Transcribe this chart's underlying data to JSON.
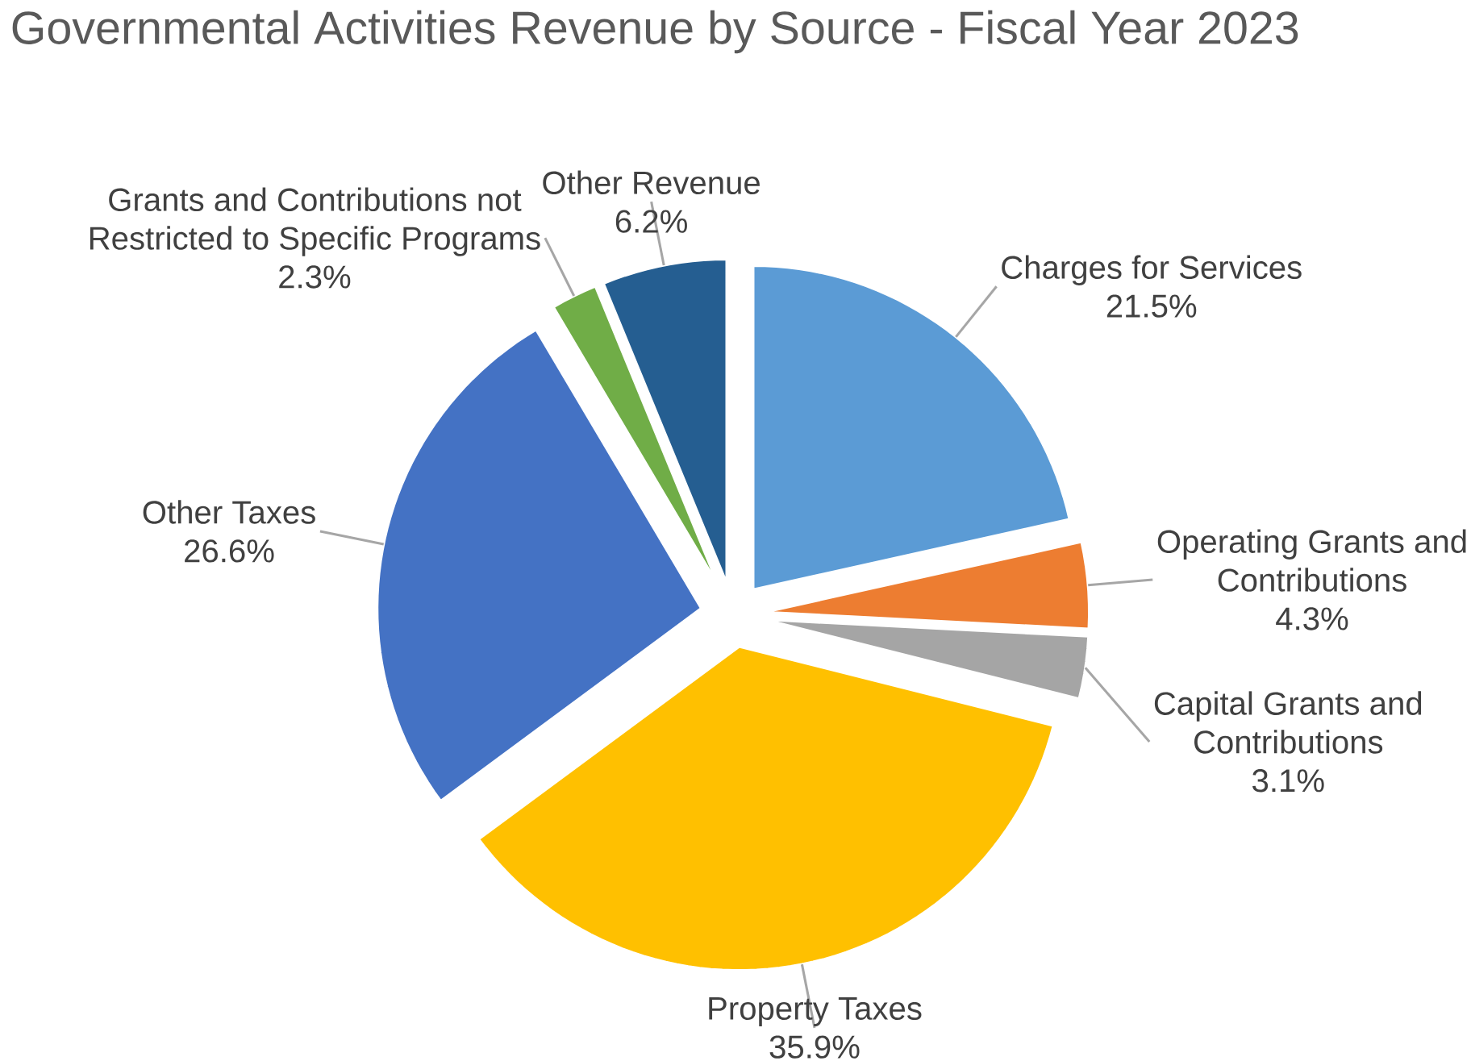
{
  "chart_data": {
    "type": "pie",
    "title": "Governmental Activities Revenue by Source - Fiscal Year 2023",
    "categories": [
      "Charges for Services",
      "Operating Grants and Contributions",
      "Capital Grants and Contributions",
      "Property Taxes",
      "Other Taxes",
      "Grants and Contributions not Restricted to Specific Programs",
      "Other Revenue"
    ],
    "values": [
      21.5,
      4.3,
      3.1,
      35.9,
      26.6,
      2.3,
      6.2
    ],
    "value_labels": [
      "21.5%",
      "4.3%",
      "3.1%",
      "35.9%",
      "26.6%",
      "2.3%",
      "6.2%"
    ],
    "colors": [
      "#5b9bd5",
      "#ed7d31",
      "#a5a5a5",
      "#ffc000",
      "#4472c4",
      "#70ad47",
      "#255e91"
    ]
  }
}
